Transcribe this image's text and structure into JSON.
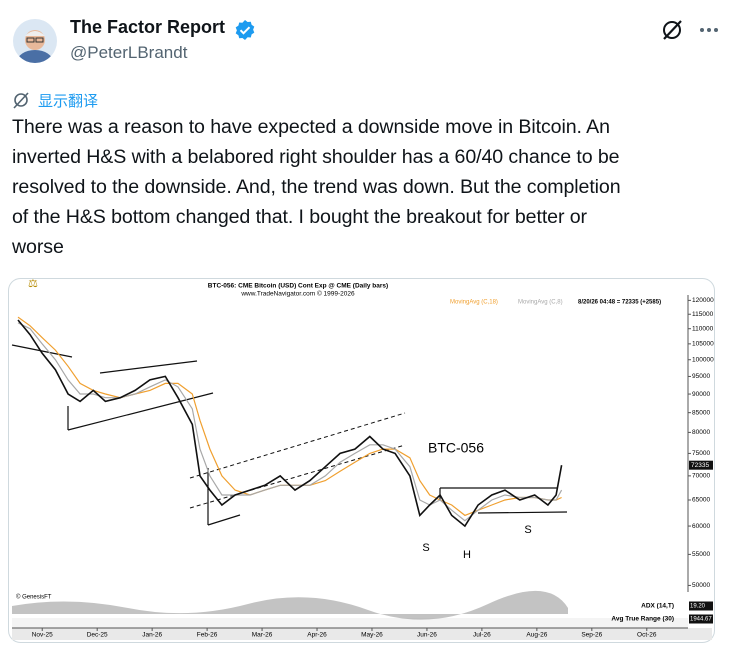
{
  "header": {
    "name": "The Factor Report",
    "handle": "@PeterLBrandt",
    "translate": "显示翻译"
  },
  "tweet": {
    "text_lines": [
      "There was a reason to have expected a downside move in Bitcoin. An",
      "inverted H&S with a belabored right shoulder has a 60/40 chance to be",
      "resolved to the downside. And, the trend was down. But the completion",
      "of the H&S bottom changed that. I bought the breakout for better or",
      "worse"
    ]
  },
  "chart_data": {
    "type": "line",
    "title": "BTC-056:  CME Bitcoin (USD) Cont Exp @ CME  (Daily bars)",
    "subtitle": "www.TradeNavigator.com © 1999-2026",
    "info": "8/20/26 04:48 = 72335 (+2585)",
    "copyright": "© GenesisFT",
    "log_scale": true,
    "grid": false,
    "color": "#111111",
    "xlim": [
      -0.55,
      11.75
    ],
    "ylim": [
      49000,
      122000
    ],
    "xticks": [
      {
        "value": 0,
        "label": "Nov-25"
      },
      {
        "value": 1,
        "label": "Dec-25"
      },
      {
        "value": 2,
        "label": "Jan-26"
      },
      {
        "value": 3,
        "label": "Feb-26"
      },
      {
        "value": 4,
        "label": "Mar-26"
      },
      {
        "value": 5,
        "label": "Apr-26"
      },
      {
        "value": 6,
        "label": "May-26"
      },
      {
        "value": 7,
        "label": "Jun-26"
      },
      {
        "value": 8,
        "label": "Jul-26"
      },
      {
        "value": 9,
        "label": "Aug-26"
      },
      {
        "value": 10,
        "label": "Sep-26"
      },
      {
        "value": 11,
        "label": "Oct-26"
      }
    ],
    "yticks": [
      50000,
      55000,
      60000,
      65000,
      70000,
      75000,
      80000,
      85000,
      90000,
      95000,
      100000,
      105000,
      110000,
      115000,
      120000
    ],
    "x": [
      -0.44,
      -0.22,
      0,
      0.24,
      0.47,
      0.69,
      0.93,
      1.15,
      1.42,
      1.69,
      1.96,
      2.24,
      2.47,
      2.73,
      2.87,
      3.05,
      3.27,
      3.51,
      3.78,
      4.05,
      4.33,
      4.6,
      4.87,
      5.15,
      5.42,
      5.69,
      5.96,
      6.2,
      6.42,
      6.69,
      6.87,
      7.05,
      7.24,
      7.45,
      7.69,
      7.93,
      8.18,
      8.42,
      8.69,
      8.96,
      9.2,
      9.35,
      9.45
    ],
    "values": [
      113000,
      108000,
      102000,
      97000,
      90000,
      88000,
      91000,
      88000,
      89000,
      91000,
      94000,
      95000,
      89000,
      82000,
      70000,
      67000,
      64000,
      66000,
      67000,
      68000,
      70000,
      67000,
      69000,
      72000,
      75000,
      76000,
      79000,
      76000,
      75000,
      70000,
      62000,
      64000,
      66000,
      62000,
      60000,
      64000,
      66000,
      67000,
      65000,
      66000,
      64000,
      66000,
      72335
    ],
    "series": [
      {
        "name": "MovingAvg (C,18)",
        "color": "#f0a030",
        "values": [
          114000,
          111000,
          107000,
          103000,
          98000,
          93000,
          91000,
          90000,
          89000,
          90000,
          91000,
          93000,
          93000,
          90000,
          83000,
          76000,
          70000,
          67000,
          66000,
          67000,
          68000,
          68000,
          68000,
          69000,
          71000,
          73000,
          75000,
          76000,
          76000,
          74000,
          69000,
          66000,
          65000,
          64000,
          62000,
          63000,
          64000,
          65000,
          65500,
          65500,
          65000,
          65000,
          65500
        ]
      },
      {
        "name": "MovingAvg (C,8)",
        "color": "#a8a8a8",
        "values": [
          112000,
          110000,
          105000,
          100000,
          94000,
          90000,
          90000,
          89000,
          89000,
          90000,
          92000,
          94000,
          92000,
          86000,
          76000,
          70000,
          66000,
          66000,
          66000,
          67000,
          68000,
          68000,
          68000,
          70000,
          73000,
          75000,
          77000,
          77000,
          76000,
          72000,
          65000,
          64000,
          65000,
          63000,
          61000,
          63000,
          65000,
          66000,
          65500,
          65500,
          65000,
          65000,
          67000
        ]
      }
    ],
    "annotations": [
      "BTC-056",
      "S",
      "H",
      "S"
    ],
    "indicators": [
      {
        "name": "ADX (14,T)",
        "last": "19.20"
      },
      {
        "name": "Avg True Range (30)",
        "last": "1944.67"
      }
    ]
  }
}
